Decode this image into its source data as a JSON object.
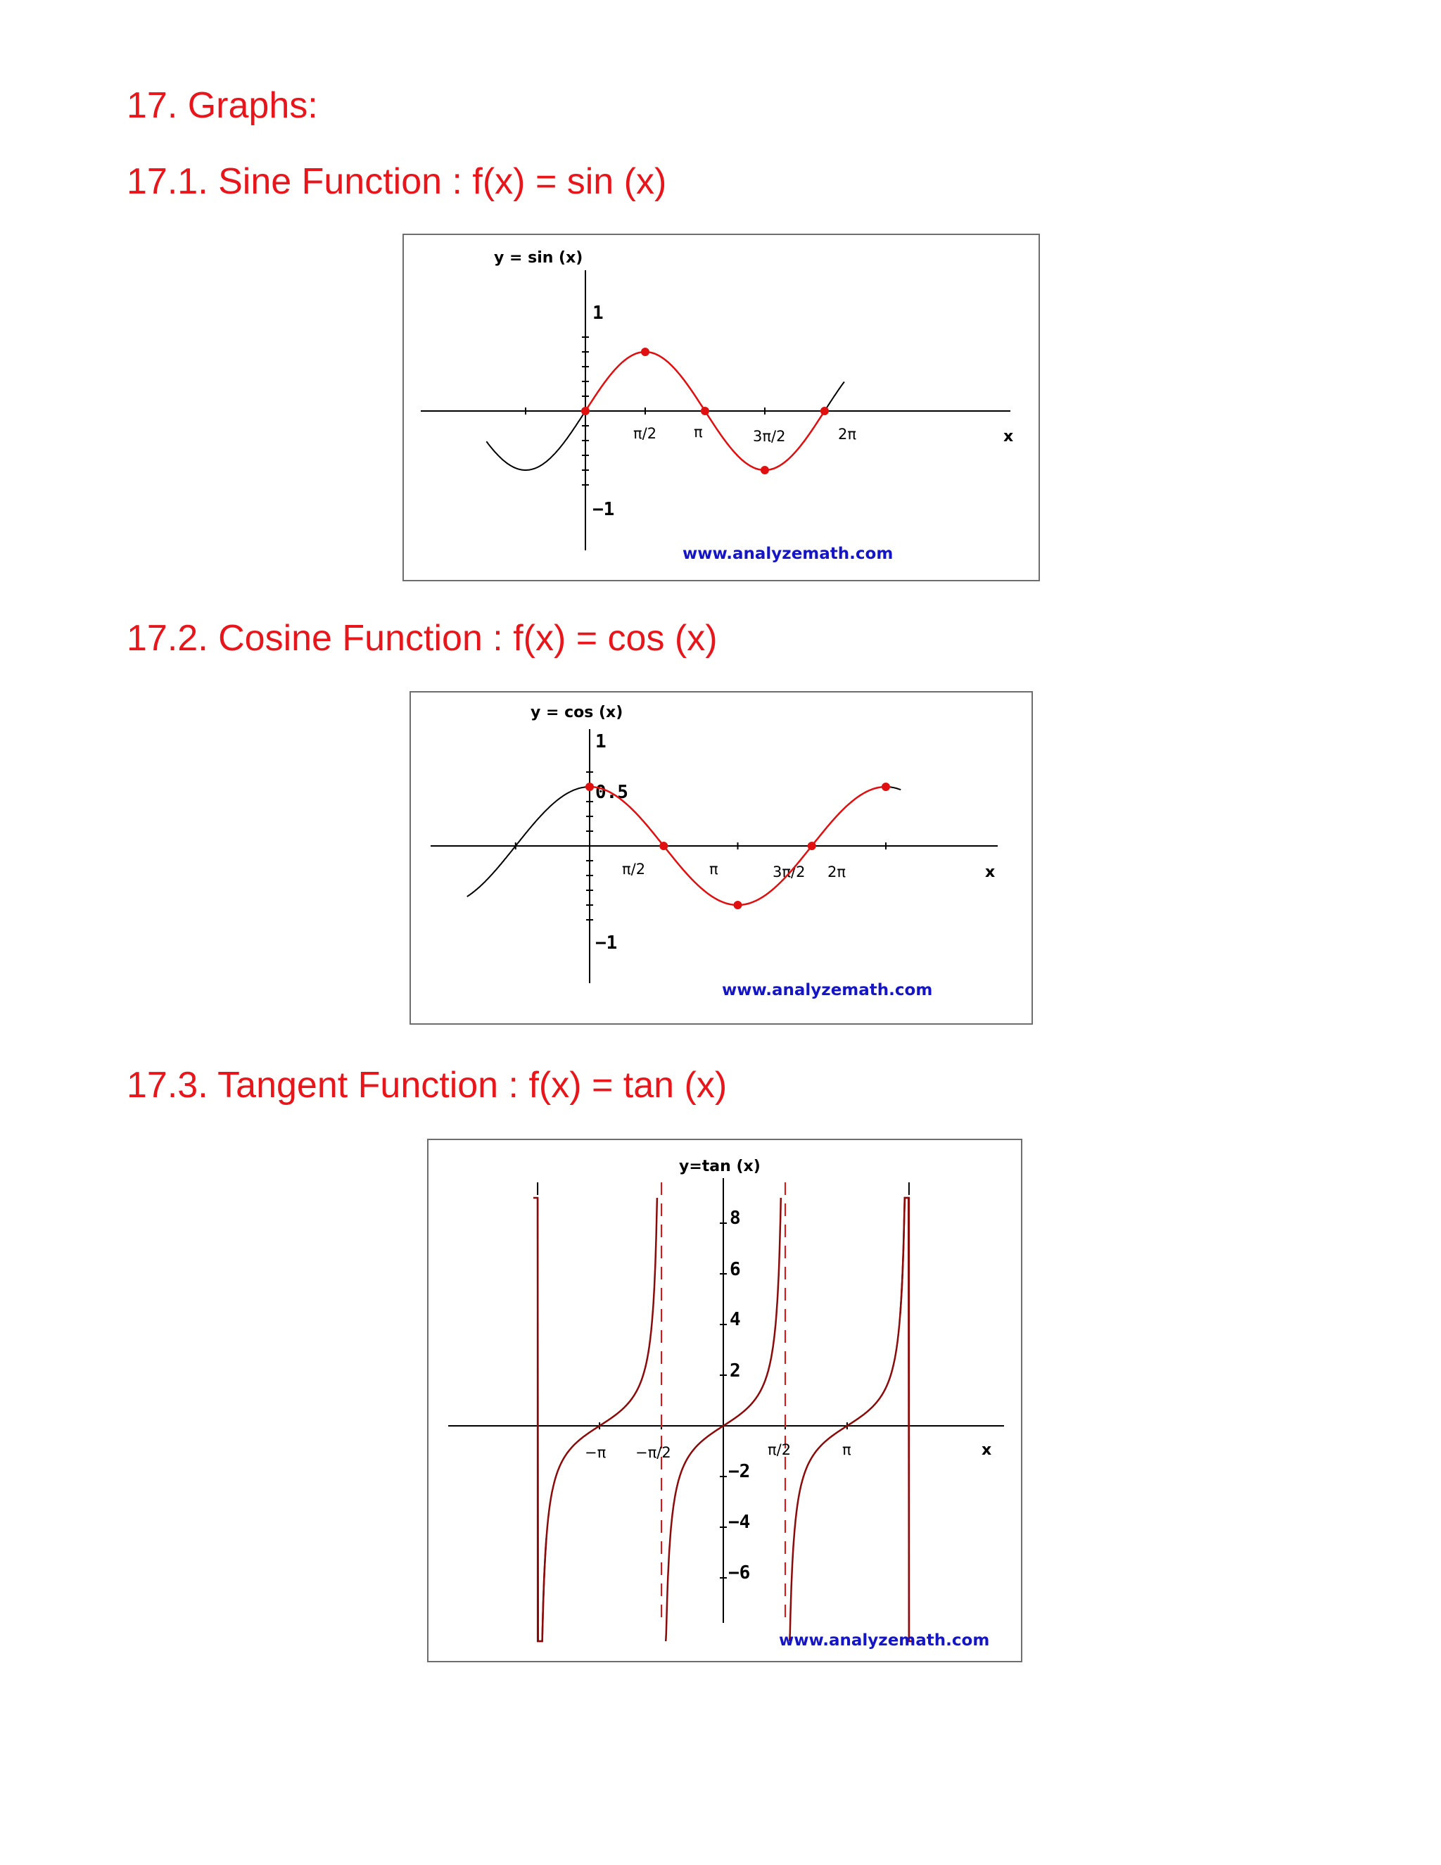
{
  "headings": {
    "main": "17. Graphs:",
    "sine": "17.1. Sine Function : f(x) = sin (x)",
    "cosine": "17.2. Cosine Function : f(x) = cos (x)",
    "tangent": "17.3. Tangent Function : f(x) = tan (x)"
  },
  "colors": {
    "heading": "#e8161b",
    "highlight_curve": "#e01010",
    "base_curve": "#000000",
    "tan_curve": "#8b0a0a",
    "credit": "#1515c8"
  },
  "chart_data": [
    {
      "type": "line",
      "title": "y = sin (x)",
      "xlabel": "x",
      "function": "sin",
      "xlim": [
        -2.6,
        6.8
      ],
      "ylim": [
        -1.4,
        1.4
      ],
      "highlight_range": [
        0,
        6.2832
      ],
      "x_tick_labels": [
        "π/2",
        "π",
        "3π/2",
        "2π"
      ],
      "y_tick_labels": [
        "1",
        "−1"
      ],
      "key_points": [
        [
          0,
          0
        ],
        [
          1.5708,
          1
        ],
        [
          3.1416,
          0
        ],
        [
          4.7124,
          -1
        ],
        [
          6.2832,
          0
        ]
      ],
      "credit": "www.analyzemath.com"
    },
    {
      "type": "line",
      "title": "y = cos (x)",
      "xlabel": "x",
      "function": "cos",
      "xlim": [
        -2.6,
        6.6
      ],
      "ylim": [
        -1.4,
        1.4
      ],
      "highlight_range": [
        0,
        6.2832
      ],
      "x_tick_labels": [
        "π/2",
        "π",
        "3π/2",
        "2π"
      ],
      "y_tick_labels": [
        "1",
        "0.5",
        "−1"
      ],
      "key_points": [
        [
          0,
          1
        ],
        [
          1.5708,
          0
        ],
        [
          3.1416,
          -1
        ],
        [
          4.7124,
          0
        ],
        [
          6.2832,
          1
        ]
      ],
      "credit": "www.analyzemath.com"
    },
    {
      "type": "line",
      "title": "y=tan (x)",
      "xlabel": "x",
      "function": "tan",
      "xlim": [
        -4.6,
        4.6
      ],
      "ylim": [
        -8,
        10
      ],
      "x_tick_labels": [
        "−π",
        "−π/2",
        "π/2",
        "π"
      ],
      "y_tick_labels": [
        "8",
        "6",
        "4",
        "2",
        "−2",
        "−4",
        "−6"
      ],
      "asymptotes": [
        -4.7124,
        -1.5708,
        1.5708,
        4.7124
      ],
      "credit": "www.analyzemath.com"
    }
  ]
}
